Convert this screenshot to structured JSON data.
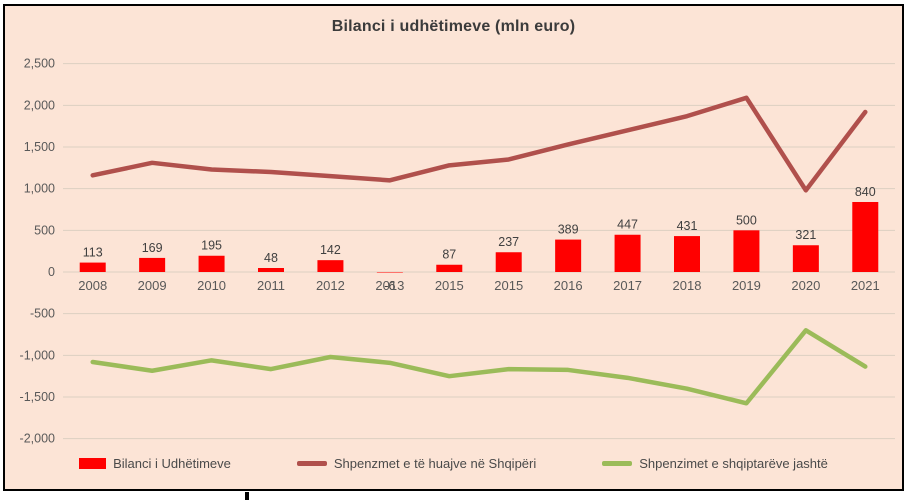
{
  "title": "Bilanci i udhëtimeve (mln euro)",
  "colors": {
    "background": "#fce4d6",
    "frame_border": "#000000",
    "bar": "#ff0000",
    "line_inbound": "#b0504c",
    "line_outbound": "#9bbb59",
    "gridline": "#ddcfc2",
    "axis_text": "#595959",
    "data_label_text": "#404040"
  },
  "y_axis": {
    "tick_labels": [
      "2,500",
      "2,000",
      "1,500",
      "1,000",
      "500",
      "0",
      "-500",
      "-1,000",
      "-1,500",
      "-2,000"
    ],
    "max": 2500,
    "min": -2000,
    "step": 500
  },
  "chart_data": {
    "type": "combo-bar-line",
    "title": "Bilanci i udhëtimeve (mln euro)",
    "categories": [
      "2008",
      "2009",
      "2010",
      "2011",
      "2012",
      "2013",
      "2015",
      "2015",
      "2016",
      "2017",
      "2018",
      "2019",
      "2020",
      "2021"
    ],
    "series": [
      {
        "name": "Bilanci i Udhëtimeve",
        "type": "bar",
        "color": "#ff0000",
        "values": [
          113,
          169,
          195,
          48,
          142,
          -6,
          87,
          237,
          389,
          447,
          431,
          500,
          321,
          840
        ],
        "data_labels": [
          "113",
          "169",
          "195",
          "48",
          "142",
          "-6",
          "87",
          "237",
          "389",
          "447",
          "431",
          "500",
          "321",
          "840"
        ]
      },
      {
        "name": "Shpenzmet e të huajve në Shqipëri",
        "type": "line",
        "color": "#b0504c",
        "values": [
          1160,
          1310,
          1230,
          1200,
          1150,
          1100,
          1280,
          1350,
          1530,
          1700,
          1870,
          2090,
          980,
          1920
        ]
      },
      {
        "name": "Shpenzimet e shqiptarëve jashtë",
        "type": "line",
        "color": "#9bbb59",
        "values": [
          -1080,
          -1185,
          -1060,
          -1165,
          -1020,
          -1090,
          -1250,
          -1165,
          -1175,
          -1270,
          -1400,
          -1575,
          -700,
          -1135
        ]
      }
    ],
    "ylim": [
      -2000,
      2500
    ],
    "grid": true,
    "legend_position": "bottom"
  },
  "legend": {
    "items": [
      {
        "label": "Bilanci i Udhëtimeve",
        "marker": "bar-swatch",
        "color": "#ff0000"
      },
      {
        "label": "Shpenzmet e të huajve në Shqipëri",
        "marker": "line-swatch",
        "color": "#b0504c"
      },
      {
        "label": "Shpenzimet e shqiptarëve jashtë",
        "marker": "line-swatch",
        "color": "#9bbb59"
      }
    ]
  }
}
